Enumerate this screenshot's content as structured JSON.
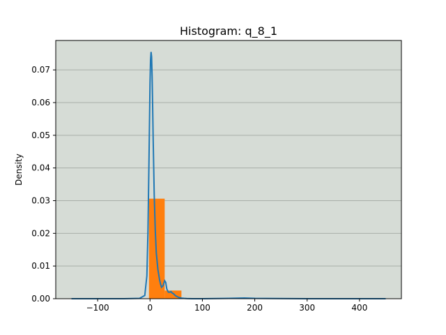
{
  "chart_data": {
    "type": "bar",
    "title": "Histogram: q_8_1",
    "xlabel": "",
    "ylabel": "Density",
    "xlim": [
      -180,
      480
    ],
    "ylim": [
      0,
      0.079
    ],
    "x_ticks": [
      -100,
      0,
      100,
      200,
      300,
      400
    ],
    "x_tick_labels": [
      "−100",
      "0",
      "100",
      "200",
      "300",
      "400"
    ],
    "y_ticks": [
      0.0,
      0.01,
      0.02,
      0.03,
      0.04,
      0.05,
      0.06,
      0.07
    ],
    "y_tick_labels": [
      "0.00",
      "0.01",
      "0.02",
      "0.03",
      "0.04",
      "0.05",
      "0.06",
      "0.07"
    ],
    "grid": "horizontal",
    "legend": "none",
    "colors": {
      "plot_background": "#d6dcd6",
      "grid": "#a8aea8",
      "bars": "#ff7f0e",
      "kde": "#1f77b4"
    },
    "bars": [
      {
        "x0": -2,
        "x1": 28,
        "density": 0.0306
      },
      {
        "x0": 28,
        "x1": 60,
        "density": 0.0025
      },
      {
        "x0": 60,
        "x1": 90,
        "density": 0.0001
      },
      {
        "x0": 90,
        "x1": 120,
        "density": 0.0
      },
      {
        "x0": 120,
        "x1": 150,
        "density": 0.0
      },
      {
        "x0": 150,
        "x1": 180,
        "density": 0.0
      },
      {
        "x0": 180,
        "x1": 210,
        "density": 0.0
      },
      {
        "x0": 210,
        "x1": 240,
        "density": 0.0
      },
      {
        "x0": 240,
        "x1": 270,
        "density": 0.0
      },
      {
        "x0": 270,
        "x1": 300,
        "density": 0.0
      }
    ],
    "kde": {
      "x": [
        -150,
        -100,
        -50,
        -20,
        -10,
        -6,
        -4,
        -2,
        0,
        1,
        2,
        3,
        4,
        5,
        6,
        8,
        10,
        12,
        15,
        18,
        20,
        22,
        25,
        28,
        30,
        32,
        35,
        38,
        40,
        42,
        45,
        48,
        50,
        55,
        60,
        65,
        70,
        80,
        100,
        150,
        180,
        200,
        300,
        400,
        450
      ],
      "y": [
        0,
        0,
        0,
        0.0001,
        0.001,
        0.007,
        0.02,
        0.042,
        0.066,
        0.073,
        0.0755,
        0.074,
        0.068,
        0.059,
        0.049,
        0.032,
        0.021,
        0.014,
        0.009,
        0.006,
        0.0045,
        0.0035,
        0.004,
        0.0055,
        0.005,
        0.003,
        0.002,
        0.002,
        0.0022,
        0.0018,
        0.0015,
        0.001,
        0.0008,
        0.0004,
        0.0002,
        0.0001,
        5e-05,
        0,
        0,
        0.0001,
        0.0002,
        0.0001,
        0,
        0,
        0
      ]
    }
  }
}
